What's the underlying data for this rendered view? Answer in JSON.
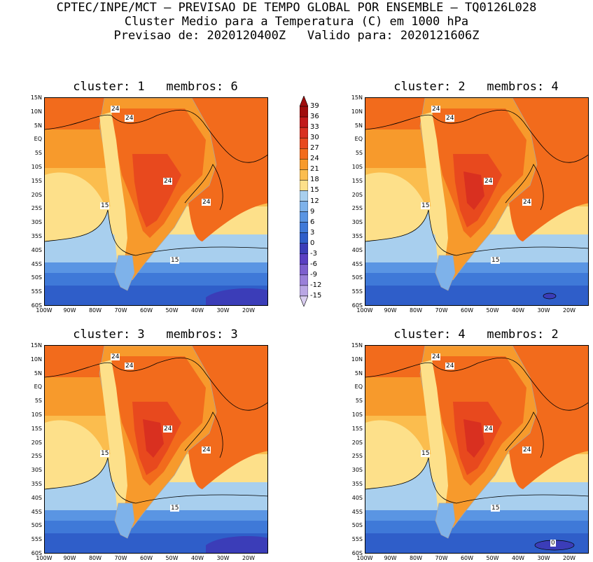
{
  "header": {
    "line1": "CPTEC/INPE/MCT – PREVISAO DE TEMPO GLOBAL POR ENSEMBLE – TQ0126L028",
    "line2": "Cluster Medio para a Temperatura (C) em 1000 hPa",
    "line3": "Previsao de: 2020120400Z   Valido para: 2020121606Z"
  },
  "panels": [
    {
      "title": "cluster: 1   membros: 6"
    },
    {
      "title": "cluster: 2   membros: 4"
    },
    {
      "title": "cluster: 3   membros: 3"
    },
    {
      "title": "cluster: 4   membros: 2"
    }
  ],
  "axes": {
    "lat_labels": [
      "15N",
      "10N",
      "5N",
      "EQ",
      "5S",
      "10S",
      "15S",
      "20S",
      "25S",
      "30S",
      "35S",
      "40S",
      "45S",
      "50S",
      "55S",
      "60S"
    ],
    "lon_labels": [
      "100W",
      "90W",
      "80W",
      "70W",
      "60W",
      "50W",
      "40W",
      "30W",
      "20W"
    ]
  },
  "colorbar": {
    "labels": [
      "39",
      "36",
      "33",
      "30",
      "27",
      "24",
      "21",
      "18",
      "15",
      "12",
      "9",
      "6",
      "3",
      "0",
      "-3",
      "-6",
      "-9",
      "-12",
      "-15"
    ],
    "colors": [
      "#a00d0d",
      "#c21a1a",
      "#d93020",
      "#e8491e",
      "#f26b1c",
      "#f79a2c",
      "#fbbd4e",
      "#fde08a",
      "#a8cfee",
      "#7eb2ea",
      "#5a95e3",
      "#3f79d8",
      "#2f5ec9",
      "#3b3db8",
      "#5a3fc2",
      "#7d5fce",
      "#9a80d9",
      "#b9a6e4",
      "#d9cdf0"
    ]
  },
  "contour_labels": {
    "p1": [
      "24",
      "24",
      "24",
      "24",
      "15",
      "15"
    ],
    "p2": [
      "24",
      "24",
      "24",
      "24",
      "15",
      "15"
    ],
    "p3": [
      "24",
      "24",
      "24",
      "24",
      "15",
      "15"
    ],
    "p4": [
      "24",
      "24",
      "24",
      "24",
      "15",
      "15",
      "0"
    ]
  }
}
